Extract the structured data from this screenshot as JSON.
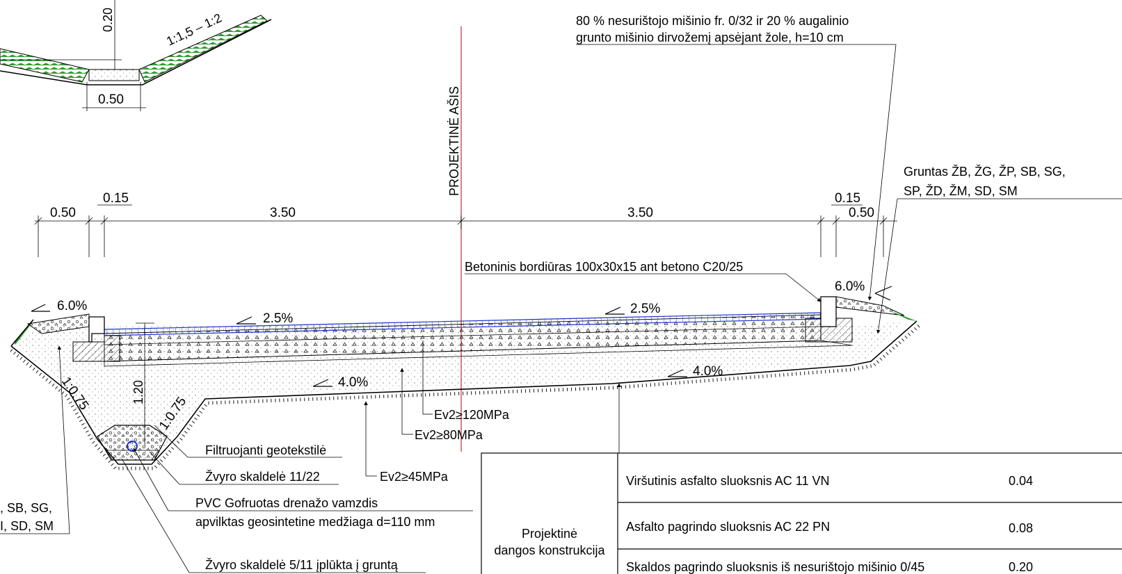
{
  "notes": {
    "top_right_line1": "80 % nesuriš­tojo mišinio fr. 0/32 ir 20 % augalinio",
    "top_right_line2": "grunto mišinio dirvožemį apsėjant žole, h=10 cm",
    "right_soil_line1": "Gruntas ŽB, ŽG, ŽP, SB, SG,",
    "right_soil_line2": "SP, ŽD, ŽM, SD, SM",
    "left_soil_line1": ", SB, SG,",
    "left_soil_line2": "I, SD, SM",
    "axis_label": "PROJEKTINĖ AŠIS",
    "curb": "Betoninis bordiūras 100x30x15 ant betono C20/25",
    "geotextile": "Filtruojanti geotekstilė",
    "gravel_11_22": "Žvyro skaldelė 11/22",
    "pvc_line1": "PVC Gofruotas drenažo vamzdis",
    "pvc_line2": "apvilktas geosintetine medžiaga d=110 mm",
    "gravel_5_11": "Žvyro skaldelė 5/11 įplūkta į gruntą",
    "ev2_120": "Ev2≥120MPa",
    "ev2_80": "Ev2≥80MPa",
    "ev2_45": "Ev2≥45MPa"
  },
  "dimensions": {
    "d_020": "0.20",
    "d_050_ditch": "0.50",
    "ditch_slope": "1:1,5 – 1:2",
    "d_050_left": "0.50",
    "d_015_left": "0.15",
    "d_350_left": "3.50",
    "d_350_right": "3.50",
    "d_015_right": "0.15",
    "d_050_right": "0.50",
    "d_120": "1.20",
    "slope_075_left": "1:0.75",
    "slope_075_right": "1:0.75"
  },
  "slopes": {
    "s_60_left": "6.0%",
    "s_60_right": "6.0%",
    "s_25_left": "2.5%",
    "s_25_right": "2.5%",
    "s_40_left": "4.0%",
    "s_40_right": "4.0%"
  },
  "table": {
    "group_label_line1": "Projektinė",
    "group_label_line2": "dangos konstrukcija",
    "rows": [
      {
        "name": "Viršutinis asfalto sluoksnis AC 11 VN",
        "value": "0.04"
      },
      {
        "name": "Asfalto pagrindo sluoksnis AC 22 PN",
        "value": "0.08"
      },
      {
        "name": "Skaldos pagrindo sluoksnis iš nesuriš­tojo mišinio 0/45",
        "value": "0.20"
      }
    ]
  },
  "colors": {
    "axis": "#e02020",
    "asphalt_blue": "#1a33cc",
    "grass_green": "#2e9c2e",
    "pipe": "#1a2fe0"
  }
}
